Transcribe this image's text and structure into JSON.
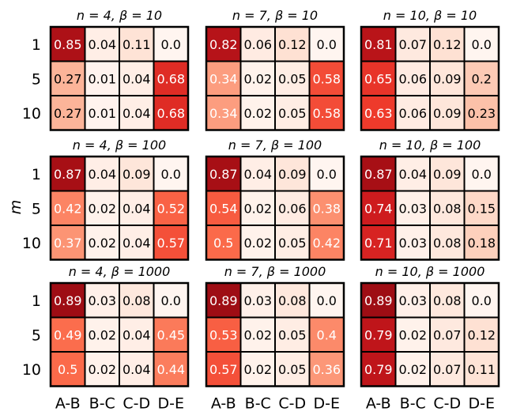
{
  "chart_data": {
    "type": "heatmap",
    "colormap": "Reds",
    "color_range": [
      0,
      1
    ],
    "ylabel": "m",
    "row_labels": [
      "1",
      "5",
      "10"
    ],
    "col_labels": [
      "A-B",
      "B-C",
      "C-D",
      "D-E"
    ],
    "panels": [
      {
        "title": "n = 4, β = 10",
        "values": [
          [
            "0.85",
            "0.04",
            "0.11",
            "0.0"
          ],
          [
            "0.27",
            "0.01",
            "0.04",
            "0.68"
          ],
          [
            "0.27",
            "0.01",
            "0.04",
            "0.68"
          ]
        ]
      },
      {
        "title": "n = 7, β = 10",
        "values": [
          [
            "0.82",
            "0.06",
            "0.12",
            "0.0"
          ],
          [
            "0.34",
            "0.02",
            "0.05",
            "0.58"
          ],
          [
            "0.34",
            "0.02",
            "0.05",
            "0.58"
          ]
        ]
      },
      {
        "title": "n = 10, β = 10",
        "values": [
          [
            "0.81",
            "0.07",
            "0.12",
            "0.0"
          ],
          [
            "0.65",
            "0.06",
            "0.09",
            "0.2"
          ],
          [
            "0.63",
            "0.06",
            "0.09",
            "0.23"
          ]
        ]
      },
      {
        "title": "n = 4, β = 100",
        "values": [
          [
            "0.87",
            "0.04",
            "0.09",
            "0.0"
          ],
          [
            "0.42",
            "0.02",
            "0.04",
            "0.52"
          ],
          [
            "0.37",
            "0.02",
            "0.04",
            "0.57"
          ]
        ]
      },
      {
        "title": "n = 7, β = 100",
        "values": [
          [
            "0.87",
            "0.04",
            "0.09",
            "0.0"
          ],
          [
            "0.54",
            "0.02",
            "0.06",
            "0.38"
          ],
          [
            "0.5",
            "0.02",
            "0.05",
            "0.42"
          ]
        ]
      },
      {
        "title": "n = 10, β = 100",
        "values": [
          [
            "0.87",
            "0.04",
            "0.09",
            "0.0"
          ],
          [
            "0.74",
            "0.03",
            "0.08",
            "0.15"
          ],
          [
            "0.71",
            "0.03",
            "0.08",
            "0.18"
          ]
        ]
      },
      {
        "title": "n = 4, β = 1000",
        "values": [
          [
            "0.89",
            "0.03",
            "0.08",
            "0.0"
          ],
          [
            "0.49",
            "0.02",
            "0.04",
            "0.45"
          ],
          [
            "0.5",
            "0.02",
            "0.04",
            "0.44"
          ]
        ]
      },
      {
        "title": "n = 7, β = 1000",
        "values": [
          [
            "0.89",
            "0.03",
            "0.08",
            "0.0"
          ],
          [
            "0.53",
            "0.02",
            "0.05",
            "0.4"
          ],
          [
            "0.57",
            "0.02",
            "0.05",
            "0.36"
          ]
        ]
      },
      {
        "title": "n = 10, β = 1000",
        "values": [
          [
            "0.89",
            "0.03",
            "0.08",
            "0.0"
          ],
          [
            "0.79",
            "0.02",
            "0.07",
            "0.12"
          ],
          [
            "0.79",
            "0.02",
            "0.07",
            "0.11"
          ]
        ]
      }
    ]
  }
}
